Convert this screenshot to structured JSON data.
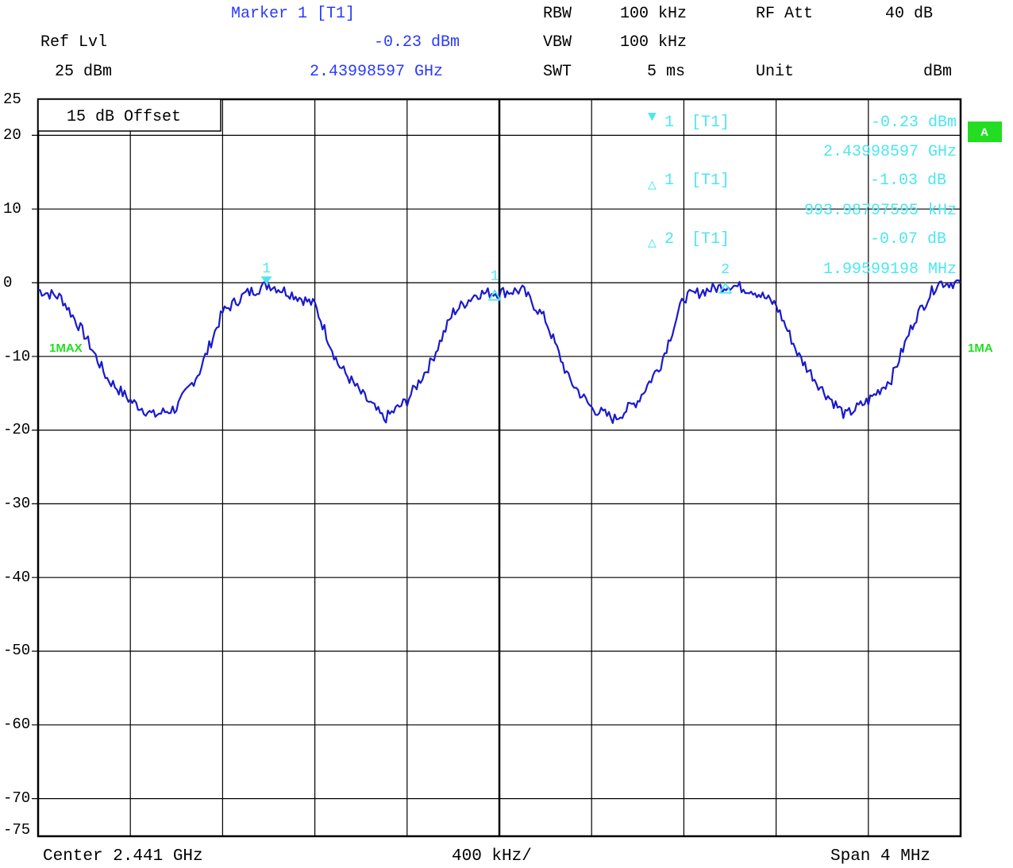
{
  "header": {
    "marker_title": "Marker 1 [T1]",
    "ref_lvl_label": "Ref Lvl",
    "ref_lvl_value": "25 dBm",
    "marker_level": "-0.23 dBm",
    "marker_freq": "2.43998597 GHz",
    "rbw_label": "RBW",
    "rbw_value": "100 kHz",
    "vbw_label": "VBW",
    "vbw_value": "100 kHz",
    "swt_label": "SWT",
    "swt_value": "5 ms",
    "rfatt_label": "RF Att",
    "rfatt_value": "40 dB",
    "unit_label": "Unit",
    "unit_value": "dBm"
  },
  "overlay": {
    "offset_text": "15 dB Offset",
    "trace_label_left": "1MAX",
    "trace_label_right": "1MA",
    "side_tag": "A"
  },
  "markers_table": [
    {
      "symbol": "▼",
      "idx": "1",
      "trace": "[T1]",
      "value": "-0.23 dBm",
      "freq": "2.43998597 GHz"
    },
    {
      "symbol": "△",
      "idx": "1",
      "trace": "[T1]",
      "value": "-1.03 dB",
      "freq": "993.98797595 kHz"
    },
    {
      "symbol": "△",
      "idx": "2",
      "trace": "[T1]",
      "value": "-0.07 dB",
      "freq": "1.99599198 MHz"
    }
  ],
  "footer": {
    "center": "Center 2.441 GHz",
    "per_div": "400 kHz/",
    "span": "Span 4 MHz"
  },
  "colors": {
    "trace": "#1a1acd",
    "marker": "#4de6f0",
    "label_green": "#22dd22",
    "header_blue": "#2a3aff",
    "grid": "#000000"
  },
  "chart_data": {
    "type": "line",
    "xlabel": "",
    "ylabel": "",
    "xlim": [
      0,
      4
    ],
    "ylim": [
      -75,
      25
    ],
    "y_ticks": [
      25,
      20,
      10,
      0,
      -10,
      -20,
      -30,
      -40,
      -50,
      -60,
      -70,
      -75
    ],
    "grid": true,
    "series": [
      {
        "x": [
          0,
          0.1,
          0.2,
          0.3,
          0.4,
          0.5,
          0.6,
          0.7,
          0.8,
          0.9,
          1.0,
          1.1,
          1.2,
          1.3,
          1.4,
          1.5,
          1.6,
          1.7,
          1.8,
          1.9,
          2.0,
          2.1,
          2.2,
          2.3,
          2.4,
          2.5,
          2.6,
          2.7,
          2.8,
          2.9,
          3.0,
          3.1,
          3.2,
          3.3,
          3.4,
          3.5,
          3.6,
          3.7,
          3.8,
          3.9,
          4.0
        ],
        "values": [
          -1,
          -2,
          -7,
          -13,
          -16,
          -18,
          -17,
          -12,
          -4,
          -1.5,
          -0.23,
          -1.5,
          -3,
          -11,
          -15,
          -18.5,
          -16,
          -11,
          -4,
          -1.5,
          -1.3,
          -1,
          -5,
          -13,
          -17,
          -18.5,
          -16,
          -11,
          -2,
          -1,
          -0.3,
          -1,
          -3,
          -10,
          -14.5,
          -18,
          -16,
          -13,
          -5,
          0,
          0
        ]
      }
    ],
    "markers": [
      {
        "label": "1",
        "x": 0.99,
        "y": -0.23
      },
      {
        "label": "1",
        "x": 1.98,
        "y": -1.26
      },
      {
        "label": "2",
        "x": 2.98,
        "y": -0.3
      }
    ]
  }
}
